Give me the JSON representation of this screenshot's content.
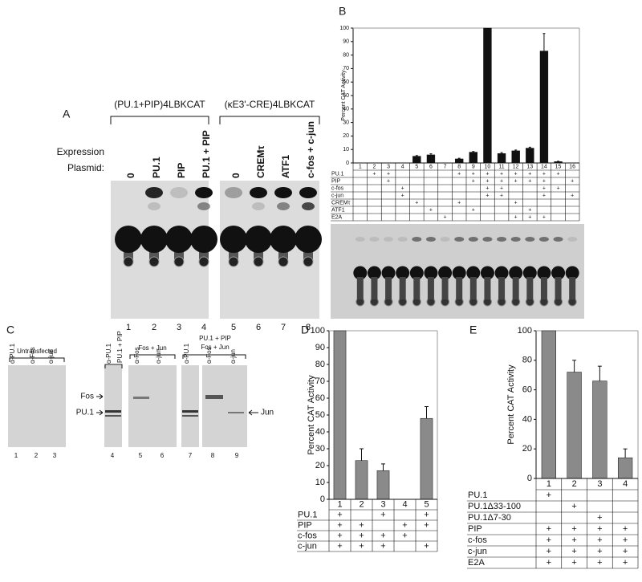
{
  "panel_a": {
    "label": "A",
    "constructs": [
      "(PU.1+PIP)4LBKCAT",
      "(κE3'-CRE)4LBKCAT"
    ],
    "row_label": [
      "Expression",
      "Plasmid:"
    ],
    "lanes": [
      "0",
      "PU.1",
      "PIP",
      "PU.1 + PIP",
      "0",
      "CREMτ",
      "ATF1",
      "c-fos + c-jun"
    ],
    "lane_numbers": [
      1,
      2,
      3,
      4,
      5,
      6,
      7,
      8
    ]
  },
  "panel_c": {
    "label": "C",
    "groups": [
      {
        "title": [
          "Untransfected"
        ],
        "antibodies": [
          "α-PU.1",
          "α-Fos",
          "α-jun"
        ],
        "lanes": [
          1,
          2,
          3
        ]
      },
      {
        "title": [
          "PU.1 + PIP"
        ],
        "antibodies": [
          "α-PU.1"
        ],
        "lanes": [
          4
        ]
      },
      {
        "title": [
          "Fos + Jun"
        ],
        "antibodies": [
          "α-Fos",
          "α-jun"
        ],
        "lanes": [
          5,
          6
        ]
      },
      {
        "title": [
          "PU.1 + PIP",
          "Fos + Jun"
        ],
        "antibodies": [
          "α-PU.1",
          "α-Fos",
          "α-jun"
        ],
        "lanes": [
          7,
          8,
          9
        ]
      }
    ],
    "markers_left": [
      "Fos",
      "PU.1"
    ],
    "marker_right": "Jun"
  },
  "chart_data": [
    {
      "type": "bar",
      "label": "B",
      "y_label": "Percent CAT Activity",
      "color": "#111111",
      "categories": [
        "1",
        "2",
        "3",
        "4",
        "5",
        "6",
        "7",
        "8",
        "9",
        "10",
        "11",
        "12",
        "13",
        "14",
        "15",
        "16"
      ],
      "values": [
        0,
        0,
        0,
        0,
        5,
        6,
        0,
        3,
        8,
        100,
        7,
        9,
        11,
        83,
        1,
        0
      ],
      "errors": [
        null,
        null,
        null,
        null,
        0.5,
        0.8,
        null,
        0.5,
        0.5,
        null,
        0.7,
        0.6,
        0.7,
        13,
        0.3,
        null
      ],
      "ylim": [
        0,
        100
      ],
      "yticks": [
        0,
        10,
        20,
        30,
        40,
        50,
        60,
        70,
        80,
        90,
        100
      ],
      "rows": [
        {
          "label": "PU.1",
          "cells": [
            null,
            "+",
            "+",
            null,
            null,
            null,
            null,
            "+",
            "+",
            "+",
            "+",
            "+",
            "+",
            "+",
            "+",
            null
          ]
        },
        {
          "label": "PIP",
          "cells": [
            null,
            null,
            "+",
            null,
            null,
            null,
            null,
            null,
            "+",
            "+",
            "+",
            "+",
            "+",
            "+",
            null,
            "+"
          ]
        },
        {
          "label": "c-fos",
          "cells": [
            null,
            null,
            null,
            "+",
            null,
            null,
            null,
            null,
            null,
            "+",
            "+",
            null,
            null,
            "+",
            "+",
            null
          ]
        },
        {
          "label": "c-jun",
          "cells": [
            null,
            null,
            null,
            "+",
            null,
            null,
            null,
            null,
            null,
            "+",
            "+",
            null,
            null,
            "+",
            null,
            "+"
          ]
        },
        {
          "label": "CREMτ",
          "cells": [
            null,
            null,
            null,
            null,
            "+",
            null,
            null,
            "+",
            null,
            null,
            null,
            "+",
            null,
            null,
            null,
            null
          ]
        },
        {
          "label": "ATF1",
          "cells": [
            null,
            null,
            null,
            null,
            null,
            "+",
            null,
            null,
            "+",
            null,
            null,
            null,
            "+",
            null,
            null,
            null
          ]
        },
        {
          "label": "E2A",
          "cells": [
            null,
            null,
            null,
            null,
            null,
            null,
            "+",
            null,
            null,
            null,
            null,
            "+",
            "+",
            "+",
            null,
            null
          ]
        }
      ]
    },
    {
      "type": "bar",
      "label": "D",
      "y_label": "Percent CAT Activity",
      "color": "#8a8a8a",
      "categories": [
        "1",
        "2",
        "3",
        "4",
        "5"
      ],
      "values": [
        100,
        23,
        17,
        0,
        48
      ],
      "errors": [
        null,
        7,
        4,
        null,
        7
      ],
      "ylim": [
        0,
        100
      ],
      "yticks": [
        0,
        10,
        20,
        30,
        40,
        50,
        60,
        70,
        80,
        90,
        100
      ],
      "rows": [
        {
          "label": "PU.1",
          "cells": [
            "+",
            null,
            "+",
            null,
            "+"
          ]
        },
        {
          "label": "PIP",
          "cells": [
            "+",
            "+",
            null,
            "+",
            "+"
          ]
        },
        {
          "label": "c-fos",
          "cells": [
            "+",
            "+",
            "+",
            "+",
            null
          ]
        },
        {
          "label": "c-jun",
          "cells": [
            "+",
            "+",
            "+",
            null,
            "+"
          ]
        }
      ]
    },
    {
      "type": "bar",
      "label": "E",
      "y_label": "Percent CAT Activity",
      "color": "#8a8a8a",
      "categories": [
        "1",
        "2",
        "3",
        "4"
      ],
      "values": [
        100,
        72,
        66,
        14
      ],
      "errors": [
        null,
        8,
        10,
        6
      ],
      "ylim": [
        0,
        100
      ],
      "yticks": [
        0,
        20,
        40,
        60,
        80,
        100
      ],
      "rows": [
        {
          "label": "PU.1",
          "cells": [
            "+",
            null,
            null,
            null
          ]
        },
        {
          "label": "PU.1Δ33-100",
          "cells": [
            null,
            "+",
            null,
            null
          ]
        },
        {
          "label": "PU.1Δ7-30",
          "cells": [
            null,
            null,
            "+",
            null
          ]
        },
        {
          "label": "PIP",
          "cells": [
            "+",
            "+",
            "+",
            "+"
          ]
        },
        {
          "label": "c-fos",
          "cells": [
            "+",
            "+",
            "+",
            "+"
          ]
        },
        {
          "label": "c-jun",
          "cells": [
            "+",
            "+",
            "+",
            "+"
          ]
        },
        {
          "label": "E2A",
          "cells": [
            "+",
            "+",
            "+",
            "+"
          ]
        }
      ]
    }
  ]
}
